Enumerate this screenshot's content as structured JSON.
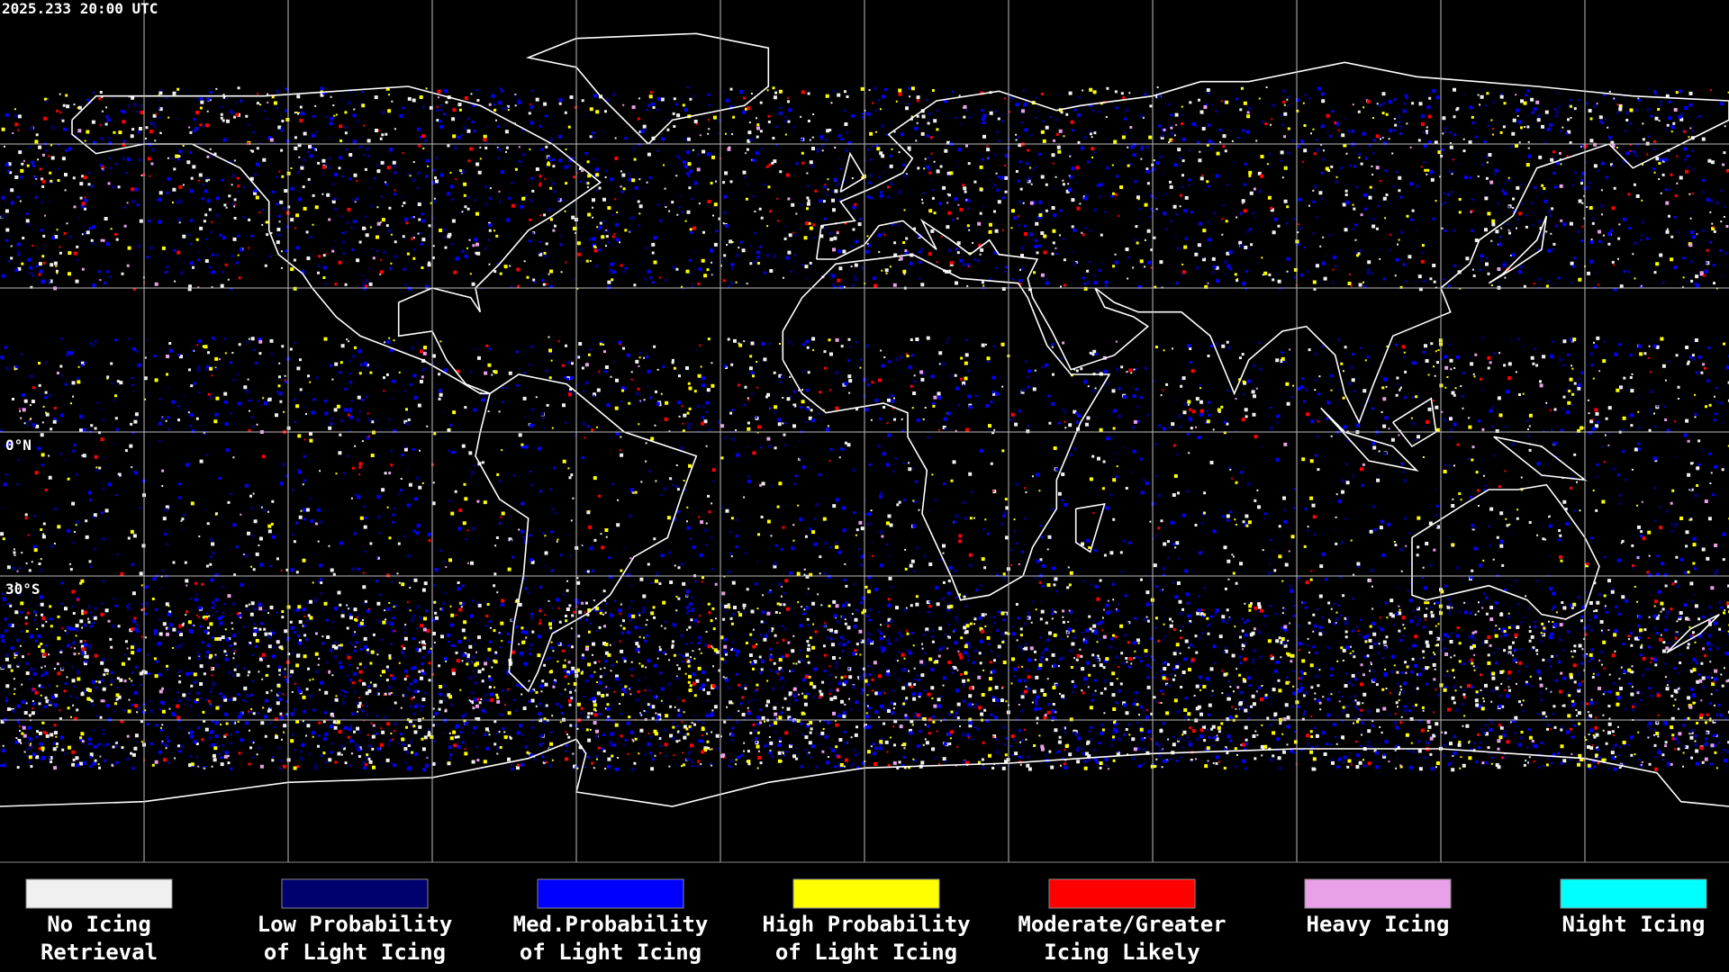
{
  "header": {
    "title": "2025.233 20:00 UTC"
  },
  "map": {
    "lat_labels": [
      {
        "text": "0°N",
        "lat": 0
      },
      {
        "text": "30°S",
        "lat": -30
      }
    ]
  },
  "legend": [
    {
      "label": [
        "No Icing",
        "Retrieval"
      ],
      "color": "#f0f0f0"
    },
    {
      "label": [
        "Low Probability",
        "of Light Icing"
      ],
      "color": "#00006e"
    },
    {
      "label": [
        "Med.Probability",
        "of Light Icing"
      ],
      "color": "#0000ff"
    },
    {
      "label": [
        "High Probability",
        "of Light Icing"
      ],
      "color": "#ffff00"
    },
    {
      "label": [
        "Moderate/Greater",
        "Icing Likely"
      ],
      "color": "#ff0000"
    },
    {
      "label": [
        "Heavy Icing"
      ],
      "color": "#e8a0e8"
    },
    {
      "label": [
        "Night Icing"
      ],
      "color": "#00ffff"
    }
  ]
}
